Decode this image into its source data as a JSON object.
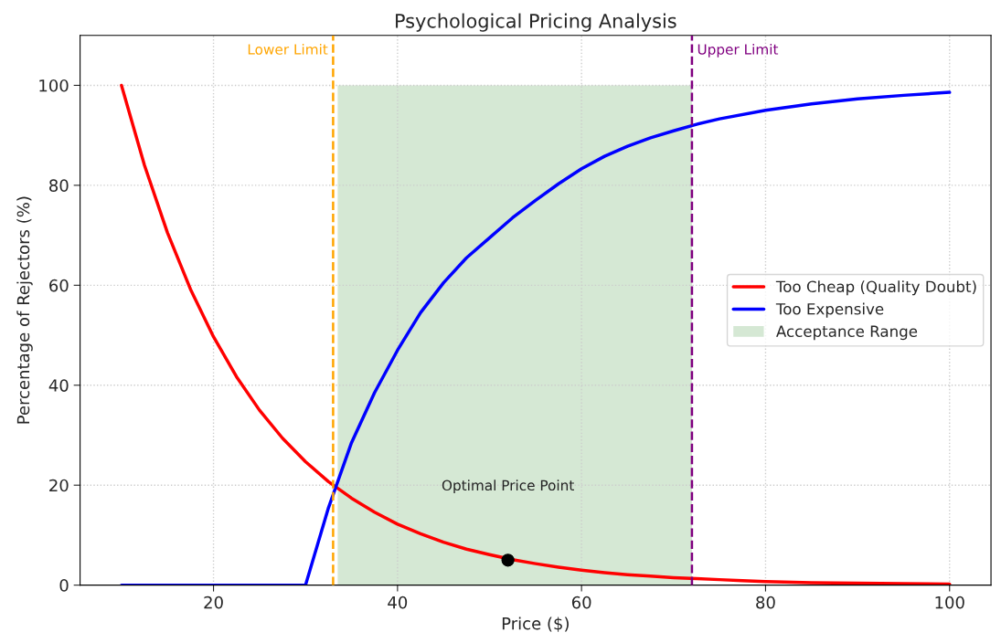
{
  "chart_data": {
    "type": "line",
    "title": "Psychological Pricing Analysis",
    "xlabel": "Price ($)",
    "ylabel": "Percentage of Rejectors (%)",
    "series": [
      {
        "name": "Too Cheap (Quality Doubt)",
        "color": "#ff0000",
        "x": [
          10,
          12.5,
          15,
          17.5,
          20,
          22.5,
          25,
          27.5,
          30,
          32.5,
          35,
          37.5,
          40,
          42.5,
          45,
          47.5,
          50,
          52.5,
          55,
          57.5,
          60,
          62.5,
          65,
          67.5,
          70,
          72.5,
          75,
          77.5,
          80,
          85,
          90,
          95,
          100
        ],
        "values": [
          100,
          84.0,
          70.5,
          59.2,
          49.7,
          41.7,
          35.0,
          29.4,
          24.7,
          20.7,
          17.4,
          14.6,
          12.2,
          10.3,
          8.6,
          7.2,
          6.1,
          5.1,
          4.3,
          3.6,
          3.0,
          2.5,
          2.1,
          1.8,
          1.5,
          1.3,
          1.1,
          0.9,
          0.7,
          0.5,
          0.4,
          0.3,
          0.2
        ]
      },
      {
        "name": "Too Expensive",
        "color": "#0000ff",
        "x": [
          10,
          20,
          30,
          32.5,
          35,
          37.5,
          40,
          42.5,
          45,
          47.5,
          50,
          52.5,
          55,
          57.5,
          60,
          62.5,
          65,
          67.5,
          70,
          72.5,
          75,
          80,
          85,
          90,
          95,
          100
        ],
        "values": [
          0,
          0,
          0,
          15.5,
          28.5,
          38.5,
          47,
          54.5,
          60.5,
          65.5,
          69.5,
          73.5,
          77,
          80.3,
          83.3,
          85.8,
          87.8,
          89.5,
          90.9,
          92.2,
          93.3,
          95.0,
          96.3,
          97.3,
          98.0,
          98.6
        ]
      },
      {
        "type": "area",
        "name": "Acceptance Range",
        "color": "#d5e8d4",
        "x": [
          33.5,
          72
        ],
        "values": [
          100,
          100
        ]
      },
      {
        "type": "scatter",
        "color": "#000000",
        "x": [
          52
        ],
        "values": [
          5
        ]
      }
    ],
    "annotations": [
      "Optimal Price Point"
    ],
    "ref_lines": [
      {
        "axis": "x",
        "value": 33,
        "label": "Lower Limit",
        "color": "#ffa500",
        "line_style": "dashed"
      },
      {
        "axis": "x",
        "value": 72,
        "label": "Upper Limit",
        "color": "#800080",
        "line_style": "dashed"
      }
    ],
    "xlim": [
      5.5,
      104.5
    ],
    "xticks": [
      20,
      40,
      60,
      80,
      100
    ],
    "ylim": [
      0,
      110
    ],
    "yticks": [
      0,
      20,
      40,
      60,
      80,
      100
    ],
    "grid": true,
    "legend": "right"
  }
}
